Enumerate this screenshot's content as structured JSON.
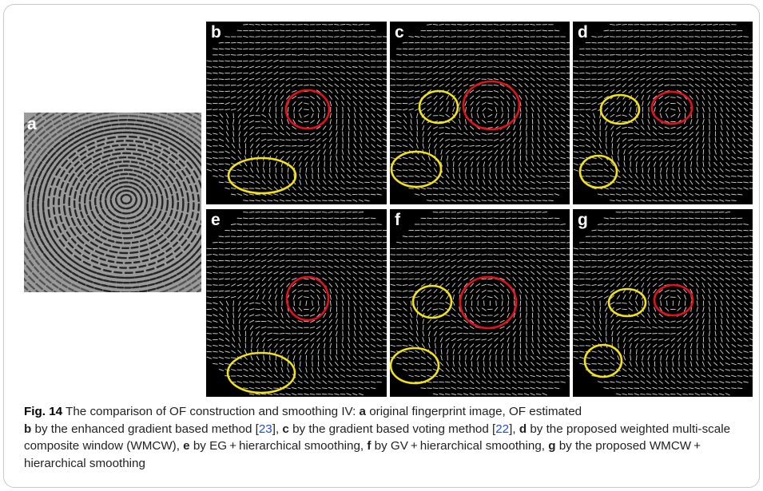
{
  "figure": {
    "caption": {
      "fig_label": "Fig. 14",
      "seg01": "  The comparison of OF construction and smoothing IV: ",
      "k_a": "a",
      "seg02": " original fingerprint image, OF estimated",
      "k_b": "b",
      "seg03": " by the enhanced gradient based method [",
      "ref23": "23",
      "seg04": "], ",
      "k_c": "c",
      "seg05": " by the gradient based voting method [",
      "ref22": "22",
      "seg06": "], ",
      "k_d": "d",
      "seg07": " by the proposed weighted multi-scale composite window (WMCW), ",
      "k_e": "e",
      "seg08": " by EG + hierarchical smoothing, ",
      "k_f": "f",
      "seg09": " by GV + hierarchical smoothing, ",
      "k_g": "g",
      "seg10": " by the proposed WMCW + hierarchical smoothing"
    },
    "panels": [
      {
        "id": "a",
        "label": "a",
        "kind": "fingerprint"
      },
      {
        "id": "b",
        "label": "b",
        "kind": "orientation-field"
      },
      {
        "id": "c",
        "label": "c",
        "kind": "orientation-field"
      },
      {
        "id": "d",
        "label": "d",
        "kind": "orientation-field"
      },
      {
        "id": "e",
        "label": "e",
        "kind": "orientation-field"
      },
      {
        "id": "f",
        "label": "f",
        "kind": "orientation-field"
      },
      {
        "id": "g",
        "label": "g",
        "kind": "orientation-field"
      }
    ],
    "marker_colors": {
      "core_region": "#e0121b",
      "noisy_region": "#f2e21a"
    },
    "field_color": "#d8d8d8",
    "fingerprint_colors": {
      "background": "#9a9a9a",
      "ridge": "#1a1a1a"
    }
  }
}
